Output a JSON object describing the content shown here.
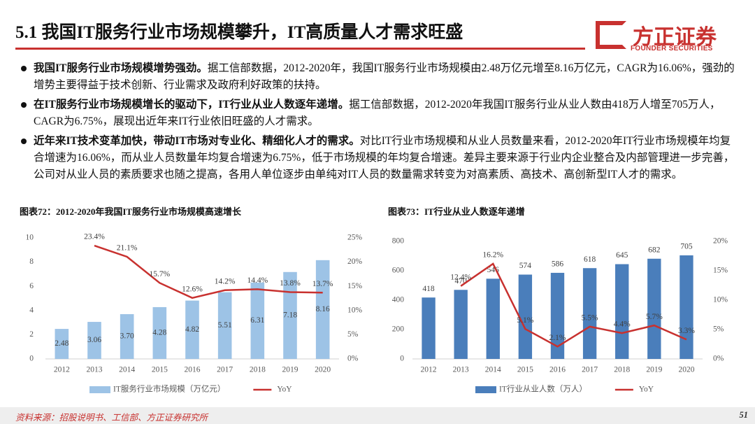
{
  "header": {
    "title": "5.1 我国IT服务行业市场规模攀升，IT高质量人才需求旺盛",
    "logo": "方正证券",
    "logo_sub": "FOUNDER SECURITIES"
  },
  "bullets": [
    {
      "bold": "我国IT服务行业市场规模增势强劲。",
      "text": "据工信部数据，2012-2020年，我国IT服务行业市场规模由2.48万亿元增至8.16万亿元，CAGR为16.06%，强劲的增势主要得益于技术创新、行业需求及政府利好政策的扶持。"
    },
    {
      "bold": "在IT服务行业市场规模增长的驱动下，IT行业从业人数逐年递增。",
      "text": "据工信部数据，2012-2020年我国IT服务行业从业人数由418万人增至705万人，CAGR为6.75%，展现出近年来IT行业依旧旺盛的人才需求。"
    },
    {
      "bold": "近年来IT技术变革加快，带动IT市场对专业化、精细化人才的需求。",
      "text": "对比IT行业市场规模和从业人员数量来看，2012-2020年IT行业市场规模年均复合增速为16.06%，而从业人员数量年均复合增速为6.75%，低于市场规模的年均复合增速。差异主要来源于行业内企业整合及内部管理进一步完善，公司对从业人员的素质要求也随之提高，各用人单位逐步由单纯对IT人员的数量需求转变为对高素质、高技术、高创新型IT人才的需求。"
    }
  ],
  "chart_data": [
    {
      "type": "bar",
      "title": "图表72：2012-2020年我国IT服务行业市场规模高速增长",
      "categories": [
        "2012",
        "2013",
        "2014",
        "2015",
        "2016",
        "2017",
        "2018",
        "2019",
        "2020"
      ],
      "series": [
        {
          "name": "IT服务行业市场规模（万亿元）",
          "color": "#9dc3e6",
          "values": [
            2.48,
            3.06,
            3.7,
            4.28,
            4.82,
            5.51,
            6.31,
            7.18,
            8.16
          ],
          "value_labels": [
            "2.48",
            "3.06",
            "3.70",
            "4.28",
            "4.82",
            "5.51",
            "6.31",
            "7.18",
            "8.16"
          ]
        },
        {
          "name": "YoY",
          "type": "line",
          "axis": "y2",
          "color": "#c8312f",
          "values": [
            null,
            23.4,
            21.1,
            15.7,
            12.6,
            14.2,
            14.4,
            13.8,
            13.7
          ],
          "value_labels": [
            null,
            "23.4%",
            "21.1%",
            "15.7%",
            "12.6%",
            "14.2%",
            "14.4%",
            "13.8%",
            "13.7%"
          ]
        }
      ],
      "ylim": [
        0,
        10
      ],
      "yticks": [
        0,
        2,
        4,
        6,
        8,
        10
      ],
      "y2lim": [
        0,
        25
      ],
      "y2ticks": [
        {
          "value": 0,
          "label": "0%"
        },
        {
          "value": 5,
          "label": "5%"
        },
        {
          "value": 10,
          "label": "10%"
        },
        {
          "value": 15,
          "label": "15%"
        },
        {
          "value": 20,
          "label": "20%"
        },
        {
          "value": 25,
          "label": "25%"
        }
      ]
    },
    {
      "type": "bar",
      "title": "图表73：IT行业从业人数逐年递增",
      "categories": [
        "2012",
        "2013",
        "2014",
        "2015",
        "2016",
        "2017",
        "2018",
        "2019",
        "2020"
      ],
      "series": [
        {
          "name": "IT行业从业人数（万人）",
          "color": "#4a7ebb",
          "values": [
            418,
            470,
            546,
            574,
            586,
            618,
            645,
            682,
            705
          ]
        },
        {
          "name": "YoY",
          "type": "line",
          "axis": "y2",
          "color": "#c8312f",
          "values": [
            null,
            12.4,
            16.2,
            5.1,
            2.1,
            5.5,
            4.4,
            5.7,
            3.3
          ],
          "value_labels": [
            null,
            "12.4%",
            "16.2%",
            "5.1%",
            "2.1%",
            "5.5%",
            "4.4%",
            "5.7%",
            "3.3%"
          ]
        }
      ],
      "ylim": [
        0,
        800
      ],
      "yticks": [
        0,
        200,
        400,
        600,
        800
      ],
      "y2lim": [
        0,
        20
      ],
      "y2ticks": [
        {
          "value": 0,
          "label": "0%"
        },
        {
          "value": 5,
          "label": "5%"
        },
        {
          "value": 10,
          "label": "10%"
        },
        {
          "value": 15,
          "label": "15%"
        },
        {
          "value": 20,
          "label": "20%"
        }
      ]
    }
  ],
  "footer": {
    "source": "资料来源：招股说明书、工信部、方正证券研究所",
    "page": "51"
  }
}
